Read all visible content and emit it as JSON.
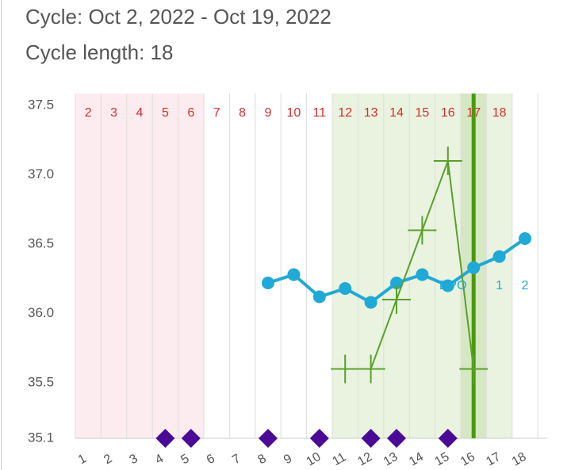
{
  "header": {
    "title": "Cycle: Oct 2, 2022 - Oct 19, 2022",
    "subtitle": "Cycle length: 18"
  },
  "chart_data": {
    "type": "line",
    "categories": [
      "2",
      "3",
      "4",
      "5",
      "6",
      "7",
      "8",
      "9",
      "10",
      "11",
      "12",
      "13",
      "14",
      "15",
      "16",
      "17",
      "18",
      null
    ],
    "x_labels": [
      "1",
      "2",
      "3",
      "4",
      "5",
      "6",
      "7",
      "8",
      "9",
      "10",
      "11",
      "12",
      "13",
      "14",
      "15",
      "16",
      "17",
      "18"
    ],
    "ylim": [
      35.1,
      37.5
    ],
    "yticks": [
      35.1,
      35.5,
      {
        "value": 36,
        "label": "36.0"
      },
      36.5,
      {
        "value": 37,
        "label": "37.0"
      },
      37.5
    ],
    "series": [
      {
        "color": "#1fa9d6",
        "marker": "circle",
        "values": [
          null,
          null,
          null,
          null,
          null,
          null,
          null,
          36.22,
          36.28,
          36.12,
          36.18,
          36.08,
          36.22,
          36.28,
          36.2,
          36.33,
          36.41,
          36.54
        ]
      },
      {
        "color": "#5aa02c",
        "marker": "cross",
        "values": [
          null,
          null,
          null,
          null,
          null,
          null,
          null,
          null,
          null,
          null,
          35.6,
          35.6,
          36.1,
          36.6,
          37.1,
          35.6,
          null,
          null
        ]
      }
    ],
    "shading": [
      {
        "from": "2",
        "to": "6",
        "color": "#fdecef"
      },
      {
        "from": "12",
        "to": "18",
        "color": "#e9f3df"
      },
      {
        "from": "17",
        "to": "17",
        "color": "#d5e7c3"
      }
    ],
    "marker_line": {
      "day": "17",
      "color": "#4a9a0a"
    },
    "diamonds": {
      "days": [
        "5",
        "6",
        "9",
        "11",
        "13",
        "14",
        "16"
      ],
      "color": "#4b0a96"
    },
    "dpo_labels": [
      "DPO",
      "1",
      "2"
    ]
  }
}
